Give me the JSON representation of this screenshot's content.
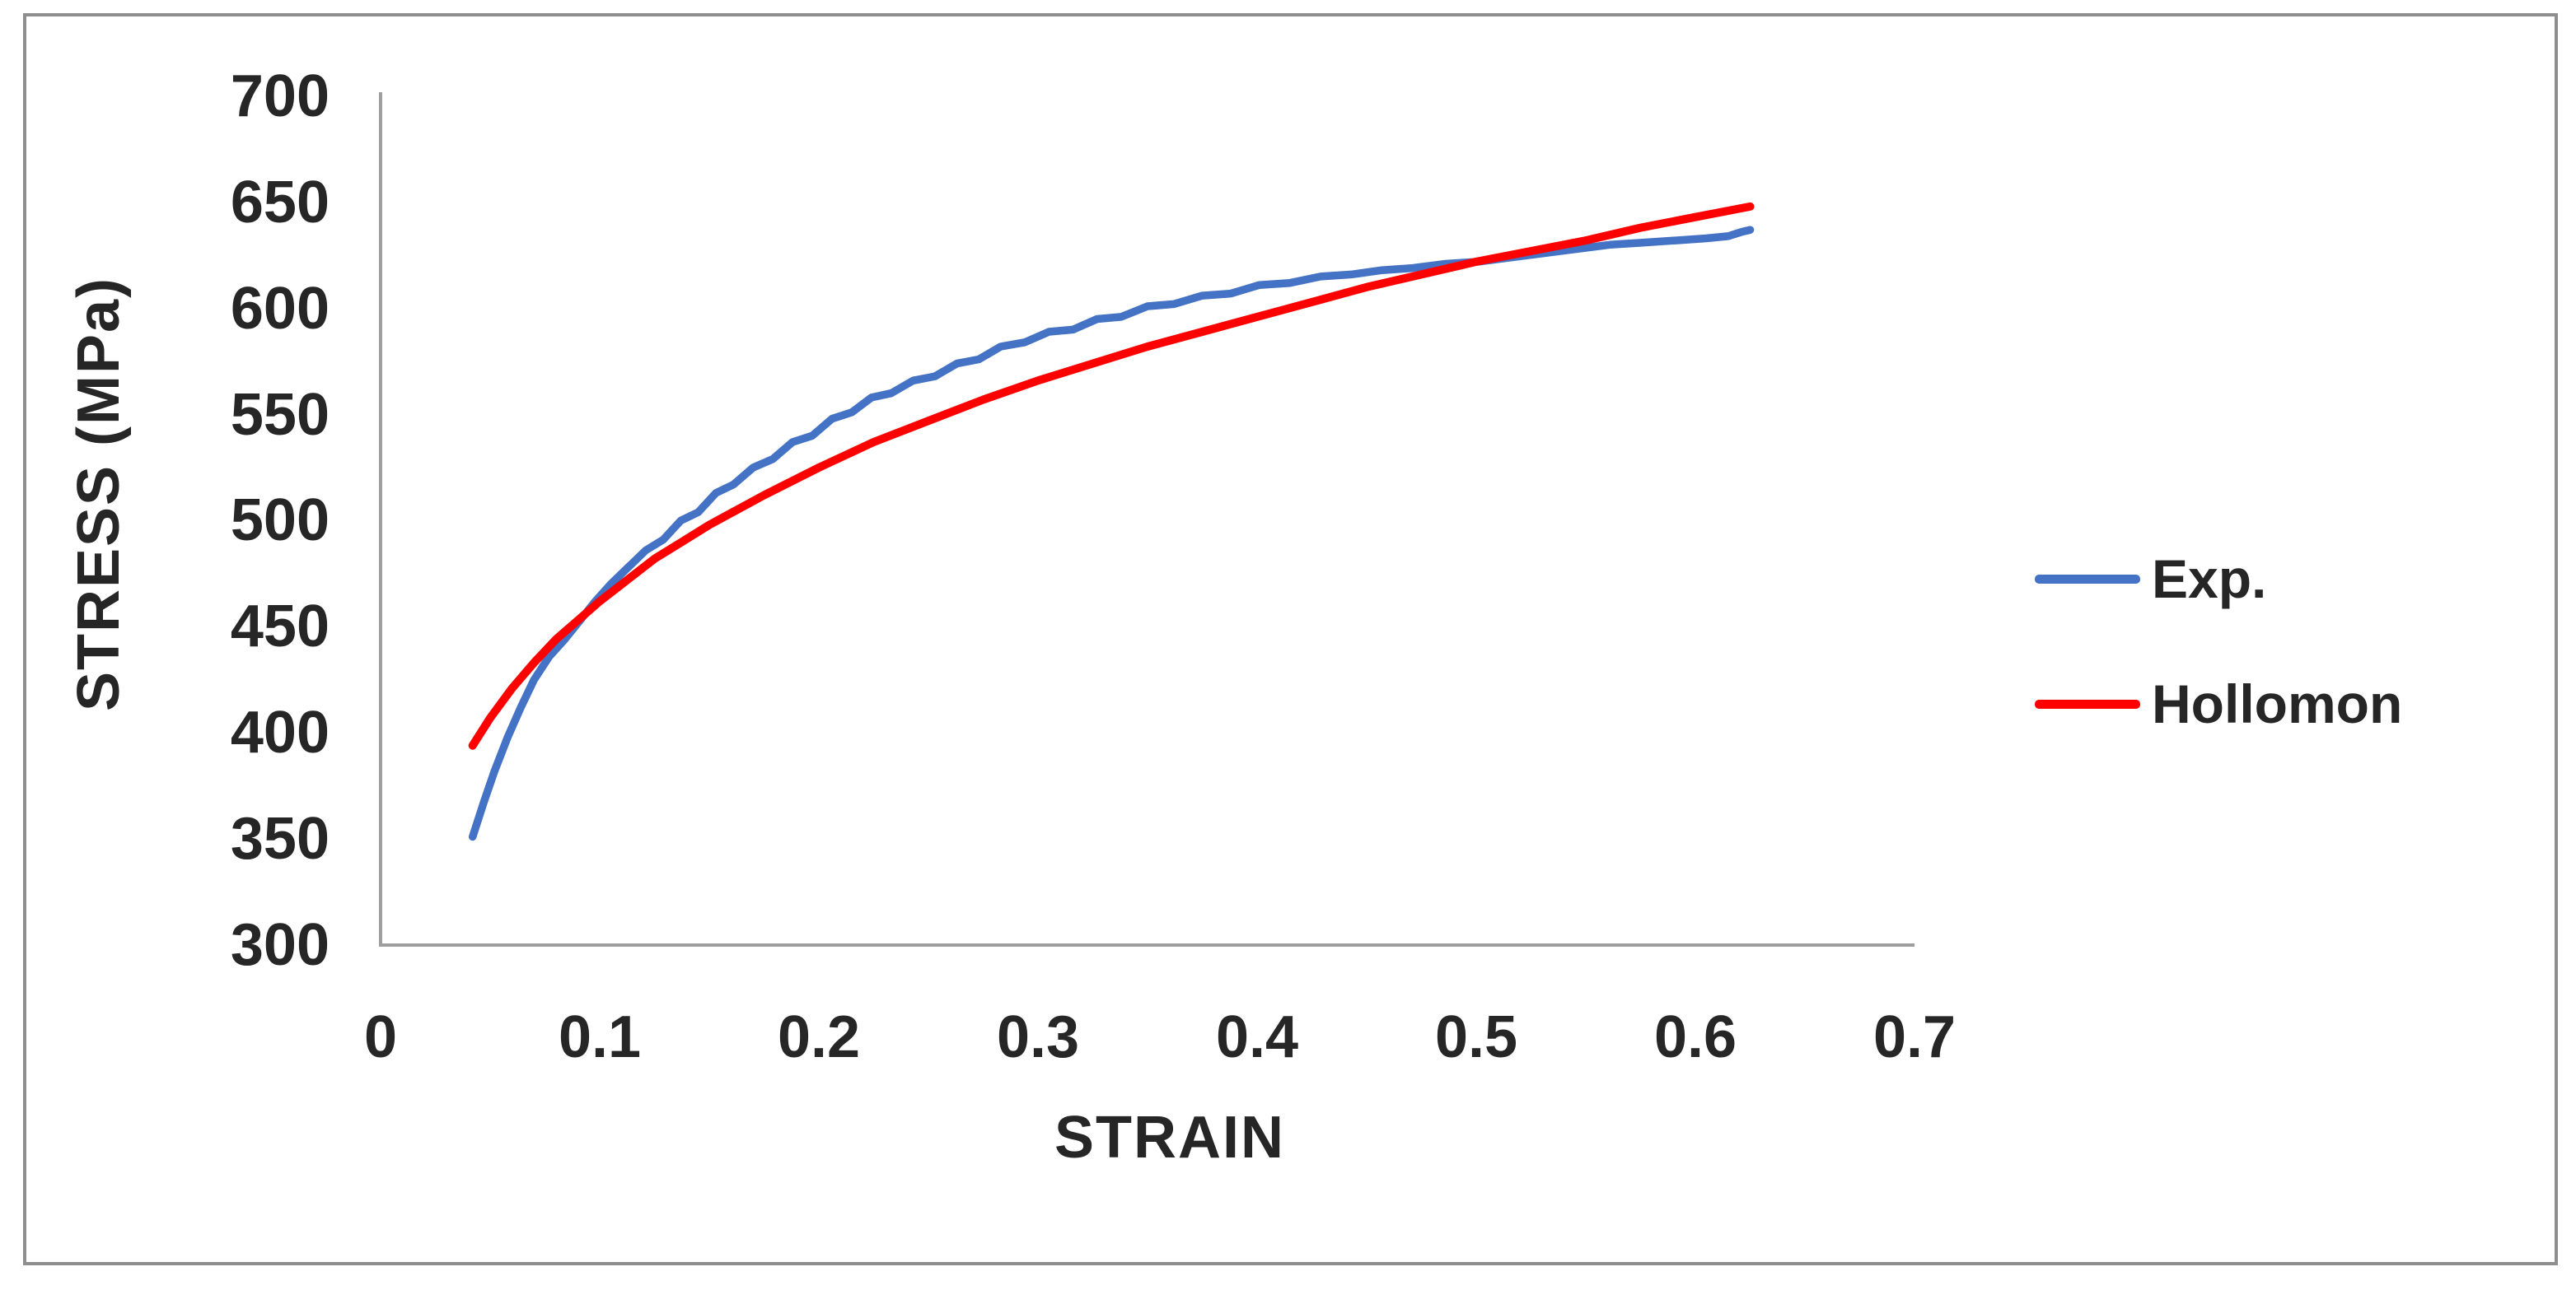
{
  "figure": {
    "background": "#FFFFFF",
    "border_color": "#8E8E8E"
  },
  "chart_data": {
    "type": "line",
    "title": "",
    "xlabel": "STRAIN",
    "ylabel": "STRESS (MPa)",
    "xlim": [
      0,
      0.7
    ],
    "ylim": [
      300,
      700
    ],
    "x_ticks": [
      "0",
      "0.1",
      "0.2",
      "0.3",
      "0.4",
      "0.5",
      "0.6",
      "0.7"
    ],
    "y_ticks": [
      "700",
      "650",
      "600",
      "550",
      "500",
      "450",
      "400",
      "350",
      "300"
    ],
    "grid": false,
    "legend_position": "right-middle",
    "axis_color": "#9E9E9E",
    "text_color": "#262626",
    "series": [
      {
        "name": "Exp.",
        "color": "#4472C4",
        "points": [
          [
            0.042,
            351
          ],
          [
            0.047,
            367
          ],
          [
            0.052,
            382
          ],
          [
            0.058,
            398
          ],
          [
            0.064,
            412
          ],
          [
            0.07,
            425
          ],
          [
            0.077,
            436
          ],
          [
            0.084,
            444
          ],
          [
            0.091,
            453
          ],
          [
            0.098,
            462
          ],
          [
            0.105,
            470
          ],
          [
            0.113,
            478
          ],
          [
            0.121,
            486
          ],
          [
            0.129,
            491
          ],
          [
            0.137,
            500
          ],
          [
            0.145,
            504
          ],
          [
            0.153,
            513
          ],
          [
            0.161,
            517
          ],
          [
            0.17,
            525
          ],
          [
            0.179,
            529
          ],
          [
            0.188,
            537
          ],
          [
            0.197,
            540
          ],
          [
            0.206,
            548
          ],
          [
            0.215,
            551
          ],
          [
            0.224,
            558
          ],
          [
            0.233,
            560
          ],
          [
            0.243,
            566
          ],
          [
            0.253,
            568
          ],
          [
            0.263,
            574
          ],
          [
            0.273,
            576
          ],
          [
            0.283,
            582
          ],
          [
            0.294,
            584
          ],
          [
            0.305,
            589
          ],
          [
            0.316,
            590
          ],
          [
            0.327,
            595
          ],
          [
            0.338,
            596
          ],
          [
            0.35,
            601
          ],
          [
            0.362,
            602
          ],
          [
            0.375,
            606
          ],
          [
            0.388,
            607
          ],
          [
            0.401,
            611
          ],
          [
            0.415,
            612
          ],
          [
            0.429,
            615
          ],
          [
            0.443,
            616
          ],
          [
            0.457,
            618
          ],
          [
            0.471,
            619
          ],
          [
            0.486,
            621
          ],
          [
            0.501,
            622
          ],
          [
            0.516,
            624
          ],
          [
            0.531,
            626
          ],
          [
            0.546,
            628
          ],
          [
            0.561,
            630
          ],
          [
            0.576,
            631
          ],
          [
            0.591,
            632
          ],
          [
            0.605,
            633
          ],
          [
            0.615,
            634
          ],
          [
            0.621,
            636
          ],
          [
            0.625,
            637
          ]
        ]
      },
      {
        "name": "Hollomon",
        "color": "#FF0000",
        "points": [
          [
            0.042,
            394
          ],
          [
            0.05,
            407
          ],
          [
            0.06,
            421
          ],
          [
            0.07,
            433
          ],
          [
            0.08,
            444
          ],
          [
            0.09,
            453
          ],
          [
            0.1,
            462
          ],
          [
            0.1125,
            472
          ],
          [
            0.125,
            482
          ],
          [
            0.1375,
            490
          ],
          [
            0.15,
            498
          ],
          [
            0.175,
            512
          ],
          [
            0.2,
            525
          ],
          [
            0.225,
            537
          ],
          [
            0.25,
            547
          ],
          [
            0.275,
            557
          ],
          [
            0.3,
            566
          ],
          [
            0.325,
            574
          ],
          [
            0.35,
            582
          ],
          [
            0.375,
            589
          ],
          [
            0.4,
            596
          ],
          [
            0.425,
            603
          ],
          [
            0.45,
            610
          ],
          [
            0.475,
            616
          ],
          [
            0.5,
            622
          ],
          [
            0.525,
            627
          ],
          [
            0.55,
            632
          ],
          [
            0.575,
            638
          ],
          [
            0.6,
            643
          ],
          [
            0.625,
            648
          ]
        ]
      }
    ]
  }
}
